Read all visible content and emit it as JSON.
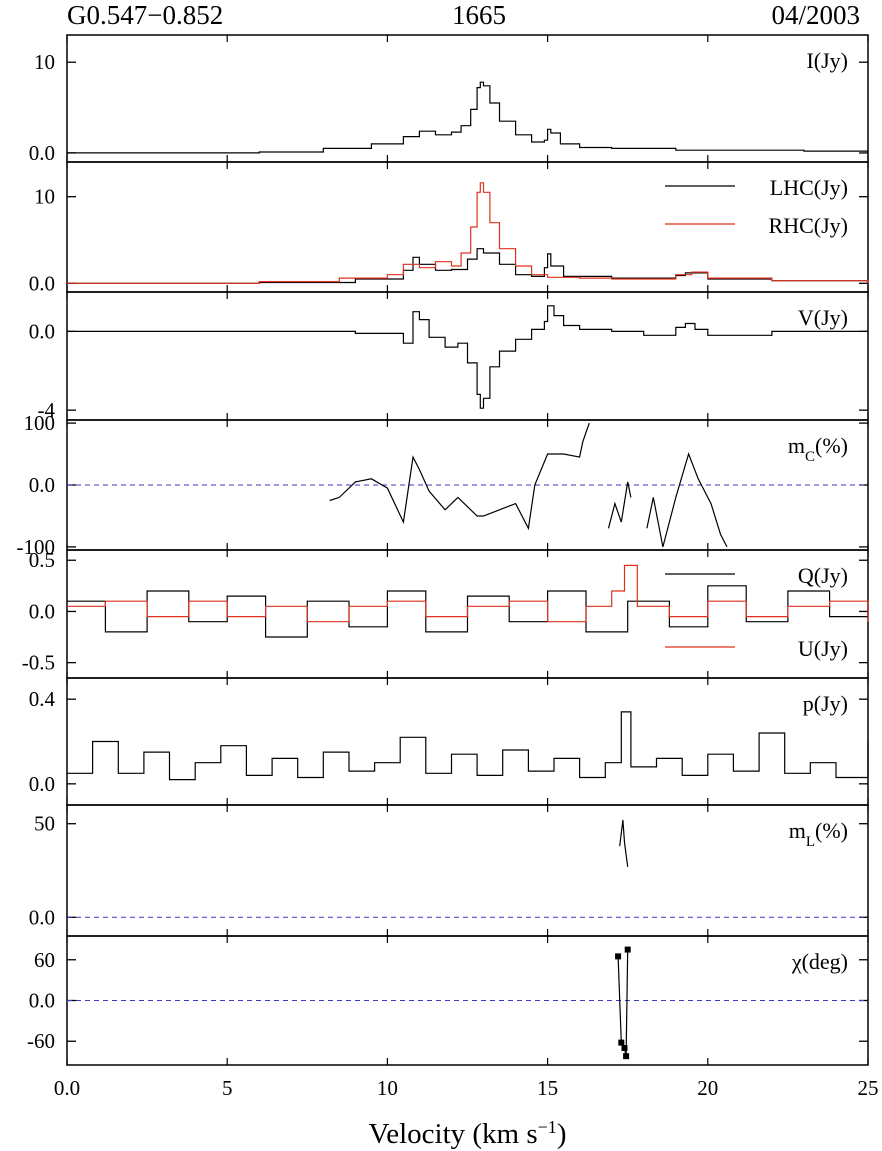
{
  "header": {
    "source": "G0.547−0.852",
    "frequency": "1665",
    "epoch": "04/2003"
  },
  "colors": {
    "black": "#000000",
    "red": "#e0301e",
    "dashed": "#3a3ac8"
  },
  "chart_data": {
    "type": "line",
    "shared_x": {
      "label": "Velocity (km s⁻¹)",
      "range": [
        0,
        25
      ],
      "ticks": [
        0,
        5,
        10,
        15,
        20,
        25
      ]
    },
    "panels": [
      {
        "id": "I",
        "label": "I(Jy)",
        "ylim": [
          -1,
          13
        ],
        "yticks": [
          0,
          10
        ],
        "series": [
          {
            "name": "I(Jy)",
            "color": "#000000",
            "step": true,
            "x": [
              0,
              6,
              8,
              9.5,
              10.5,
              11,
              11.5,
              12,
              12.3,
              12.6,
              12.8,
              12.9,
              13.0,
              13.2,
              13.5,
              14,
              14.5,
              14.9,
              15.0,
              15.1,
              15.4,
              16,
              17,
              19,
              21,
              23,
              25
            ],
            "y": [
              0,
              0.1,
              0.5,
              1.0,
              1.8,
              2.4,
              2.0,
              2.3,
              3.0,
              4.8,
              7.2,
              7.8,
              7.4,
              5.5,
              3.5,
              2.0,
              1.2,
              1.4,
              2.6,
              2.2,
              1.0,
              0.6,
              0.5,
              0.3,
              0.3,
              0.2,
              0
            ]
          }
        ]
      },
      {
        "id": "LR",
        "label": "",
        "ylim": [
          -1,
          14
        ],
        "yticks": [
          0,
          10
        ],
        "series": [
          {
            "name": "LHC(Jy)",
            "color": "#000000",
            "step": true,
            "x": [
              0,
              6,
              9,
              10.5,
              10.8,
              11,
              11.5,
              12,
              12.5,
              12.8,
              13,
              13.5,
              14,
              14.5,
              14.9,
              15.0,
              15.1,
              15.5,
              17,
              19,
              19.3,
              20,
              22,
              25
            ],
            "y": [
              0,
              0.1,
              0.5,
              1.5,
              3.0,
              2.2,
              1.5,
              1.6,
              2.8,
              4.0,
              3.5,
              2.2,
              1.0,
              0.8,
              1.8,
              3.4,
              2.0,
              0.8,
              0.6,
              0.9,
              1.2,
              0.5,
              0.3,
              0
            ]
          },
          {
            "name": "RHC(Jy)",
            "color": "#e0301e",
            "step": true,
            "x": [
              0,
              6,
              8.5,
              10,
              10.5,
              11,
              11.5,
              12,
              12.3,
              12.6,
              12.8,
              12.9,
              13.0,
              13.2,
              13.5,
              14,
              14.5,
              15,
              16,
              17,
              19,
              19.5,
              20,
              22,
              25
            ],
            "y": [
              0,
              0.2,
              0.6,
              1.0,
              2.2,
              1.8,
              2.5,
              2.0,
              3.5,
              6.5,
              10.5,
              11.6,
              10.5,
              7.0,
              4.0,
              2.0,
              1.0,
              0.7,
              0.6,
              0.5,
              1.0,
              1.3,
              0.6,
              0.3,
              0
            ]
          }
        ]
      },
      {
        "id": "V",
        "label": "V(Jy)",
        "ylim": [
          -4.5,
          2.0
        ],
        "yticks": [
          0,
          -4
        ],
        "series": [
          {
            "name": "V(Jy)",
            "color": "#000000",
            "step": true,
            "x": [
              0,
              6,
              9,
              10.5,
              10.8,
              11,
              11.3,
              11.8,
              12.2,
              12.5,
              12.8,
              12.9,
              13.0,
              13.2,
              13.5,
              14,
              14.5,
              14.9,
              15.0,
              15.2,
              15.5,
              16,
              17,
              18,
              19,
              19.3,
              19.6,
              20,
              22,
              25
            ],
            "y": [
              0,
              0,
              -0.1,
              -0.6,
              1.0,
              0.6,
              -0.3,
              -0.8,
              -0.6,
              -1.6,
              -3.2,
              -3.9,
              -3.4,
              -1.8,
              -1.0,
              -0.4,
              0.1,
              0.5,
              1.3,
              0.8,
              0.3,
              0.1,
              0,
              -0.2,
              0.2,
              0.4,
              0.1,
              -0.2,
              0,
              0
            ]
          }
        ]
      },
      {
        "id": "mC",
        "label": "m_C(%)",
        "ylim": [
          -105,
          105
        ],
        "yticks": [
          100,
          0,
          -100
        ],
        "reference_line": 0,
        "series": [
          {
            "name": "m_C(%)",
            "color": "#000000",
            "step": false,
            "x": [
              8.2,
              8.5,
              9.0,
              9.5,
              10.0,
              10.5,
              10.8,
              11.0,
              11.3,
              11.8,
              12.2,
              12.5,
              12.8,
              13.0,
              13.5,
              14.0,
              14.4,
              14.6,
              15.0,
              15.5,
              16.0,
              16.1,
              16.3
            ],
            "y": [
              -25,
              -20,
              5,
              10,
              -5,
              -60,
              45,
              25,
              -10,
              -40,
              -20,
              -35,
              -50,
              -50,
              -40,
              -30,
              -70,
              0,
              50,
              50,
              45,
              70,
              100
            ]
          },
          {
            "name": "m_C(%) segment 2",
            "color": "#000000",
            "step": false,
            "x": [
              16.9,
              17.1,
              17.3,
              17.5,
              17.6
            ],
            "y": [
              -70,
              -30,
              -60,
              5,
              -20
            ]
          },
          {
            "name": "m_C(%) segment 3",
            "color": "#000000",
            "step": false,
            "x": [
              18.1,
              18.3,
              18.6,
              19.0,
              19.4,
              19.7,
              20.1,
              20.4,
              20.6
            ],
            "y": [
              -70,
              -20,
              -100,
              -20,
              50,
              10,
              -30,
              -80,
              -100
            ]
          }
        ]
      },
      {
        "id": "QU",
        "label": "",
        "ylim": [
          -0.65,
          0.6
        ],
        "yticks": [
          0.5,
          0.0,
          -0.5
        ],
        "series": [
          {
            "name": "Q(Jy)",
            "color": "#000000",
            "step": true,
            "x": [
              0,
              1.2,
              2.5,
              3.8,
              5.0,
              6.2,
              7.5,
              8.8,
              10.0,
              11.2,
              12.5,
              13.8,
              15.0,
              16.2,
              17.5,
              18.8,
              20.0,
              21.2,
              22.5,
              23.8,
              25
            ],
            "y": [
              0.1,
              -0.2,
              0.2,
              -0.1,
              0.15,
              -0.25,
              0.1,
              -0.15,
              0.2,
              -0.2,
              0.15,
              -0.1,
              0.2,
              -0.2,
              0.1,
              -0.15,
              0.25,
              -0.1,
              0.2,
              -0.05,
              0.1
            ]
          },
          {
            "name": "U(Jy)",
            "color": "#e0301e",
            "step": true,
            "x": [
              0,
              1.2,
              2.5,
              3.8,
              5.0,
              6.2,
              7.5,
              8.8,
              10.0,
              11.2,
              12.5,
              13.8,
              15.0,
              16.2,
              17.0,
              17.4,
              17.8,
              18.8,
              20.0,
              21.2,
              22.5,
              23.8,
              25
            ],
            "y": [
              0.05,
              0.1,
              -0.05,
              0.1,
              -0.05,
              0.05,
              -0.1,
              0.05,
              0.1,
              -0.05,
              0.05,
              0.1,
              -0.1,
              0.05,
              0.2,
              0.45,
              0.05,
              -0.05,
              0.1,
              -0.05,
              0.05,
              0.1,
              -0.1
            ]
          }
        ]
      },
      {
        "id": "p",
        "label": "p(Jy)",
        "ylim": [
          -0.1,
          0.5
        ],
        "yticks": [
          0.4,
          0.0
        ],
        "series": [
          {
            "name": "p(Jy)",
            "color": "#000000",
            "step": true,
            "x": [
              0,
              0.8,
              1.6,
              2.4,
              3.2,
              4.0,
              4.8,
              5.6,
              6.4,
              7.2,
              8.0,
              8.8,
              9.6,
              10.4,
              11.2,
              12.0,
              12.8,
              13.6,
              14.4,
              15.2,
              16.0,
              16.8,
              17.3,
              17.6,
              18.4,
              19.2,
              20.0,
              20.8,
              21.6,
              22.4,
              23.2,
              24.0,
              25
            ],
            "y": [
              0.05,
              0.2,
              0.05,
              0.15,
              0.02,
              0.1,
              0.18,
              0.04,
              0.12,
              0.03,
              0.15,
              0.06,
              0.1,
              0.22,
              0.05,
              0.14,
              0.04,
              0.16,
              0.06,
              0.12,
              0.03,
              0.1,
              0.34,
              0.08,
              0.12,
              0.04,
              0.14,
              0.06,
              0.24,
              0.05,
              0.1,
              0.03,
              0.2
            ]
          }
        ]
      },
      {
        "id": "mL",
        "label": "m_L(%)",
        "ylim": [
          -10,
          60
        ],
        "yticks": [
          50,
          0
        ],
        "reference_line": 0,
        "series": [
          {
            "name": "m_L(%)",
            "color": "#000000",
            "step": false,
            "x": [
              17.25,
              17.35,
              17.4,
              17.5
            ],
            "y": [
              38,
              52,
              40,
              27
            ]
          }
        ]
      },
      {
        "id": "chi",
        "label": "χ(deg)",
        "ylim": [
          -95,
          95
        ],
        "yticks": [
          60,
          0,
          -60
        ],
        "reference_line": 0,
        "series": [
          {
            "name": "χ(deg)",
            "color": "#000000",
            "step": false,
            "markers": true,
            "x": [
              17.2,
              17.3,
              17.4,
              17.45,
              17.5
            ],
            "y": [
              65,
              -62,
              -70,
              -82,
              75
            ]
          }
        ]
      }
    ],
    "legends": [
      {
        "panel": "LR",
        "entries": [
          "LHC(Jy)",
          "RHC(Jy)"
        ]
      },
      {
        "panel": "QU",
        "entries": [
          "Q(Jy)",
          "U(Jy)"
        ]
      }
    ]
  }
}
